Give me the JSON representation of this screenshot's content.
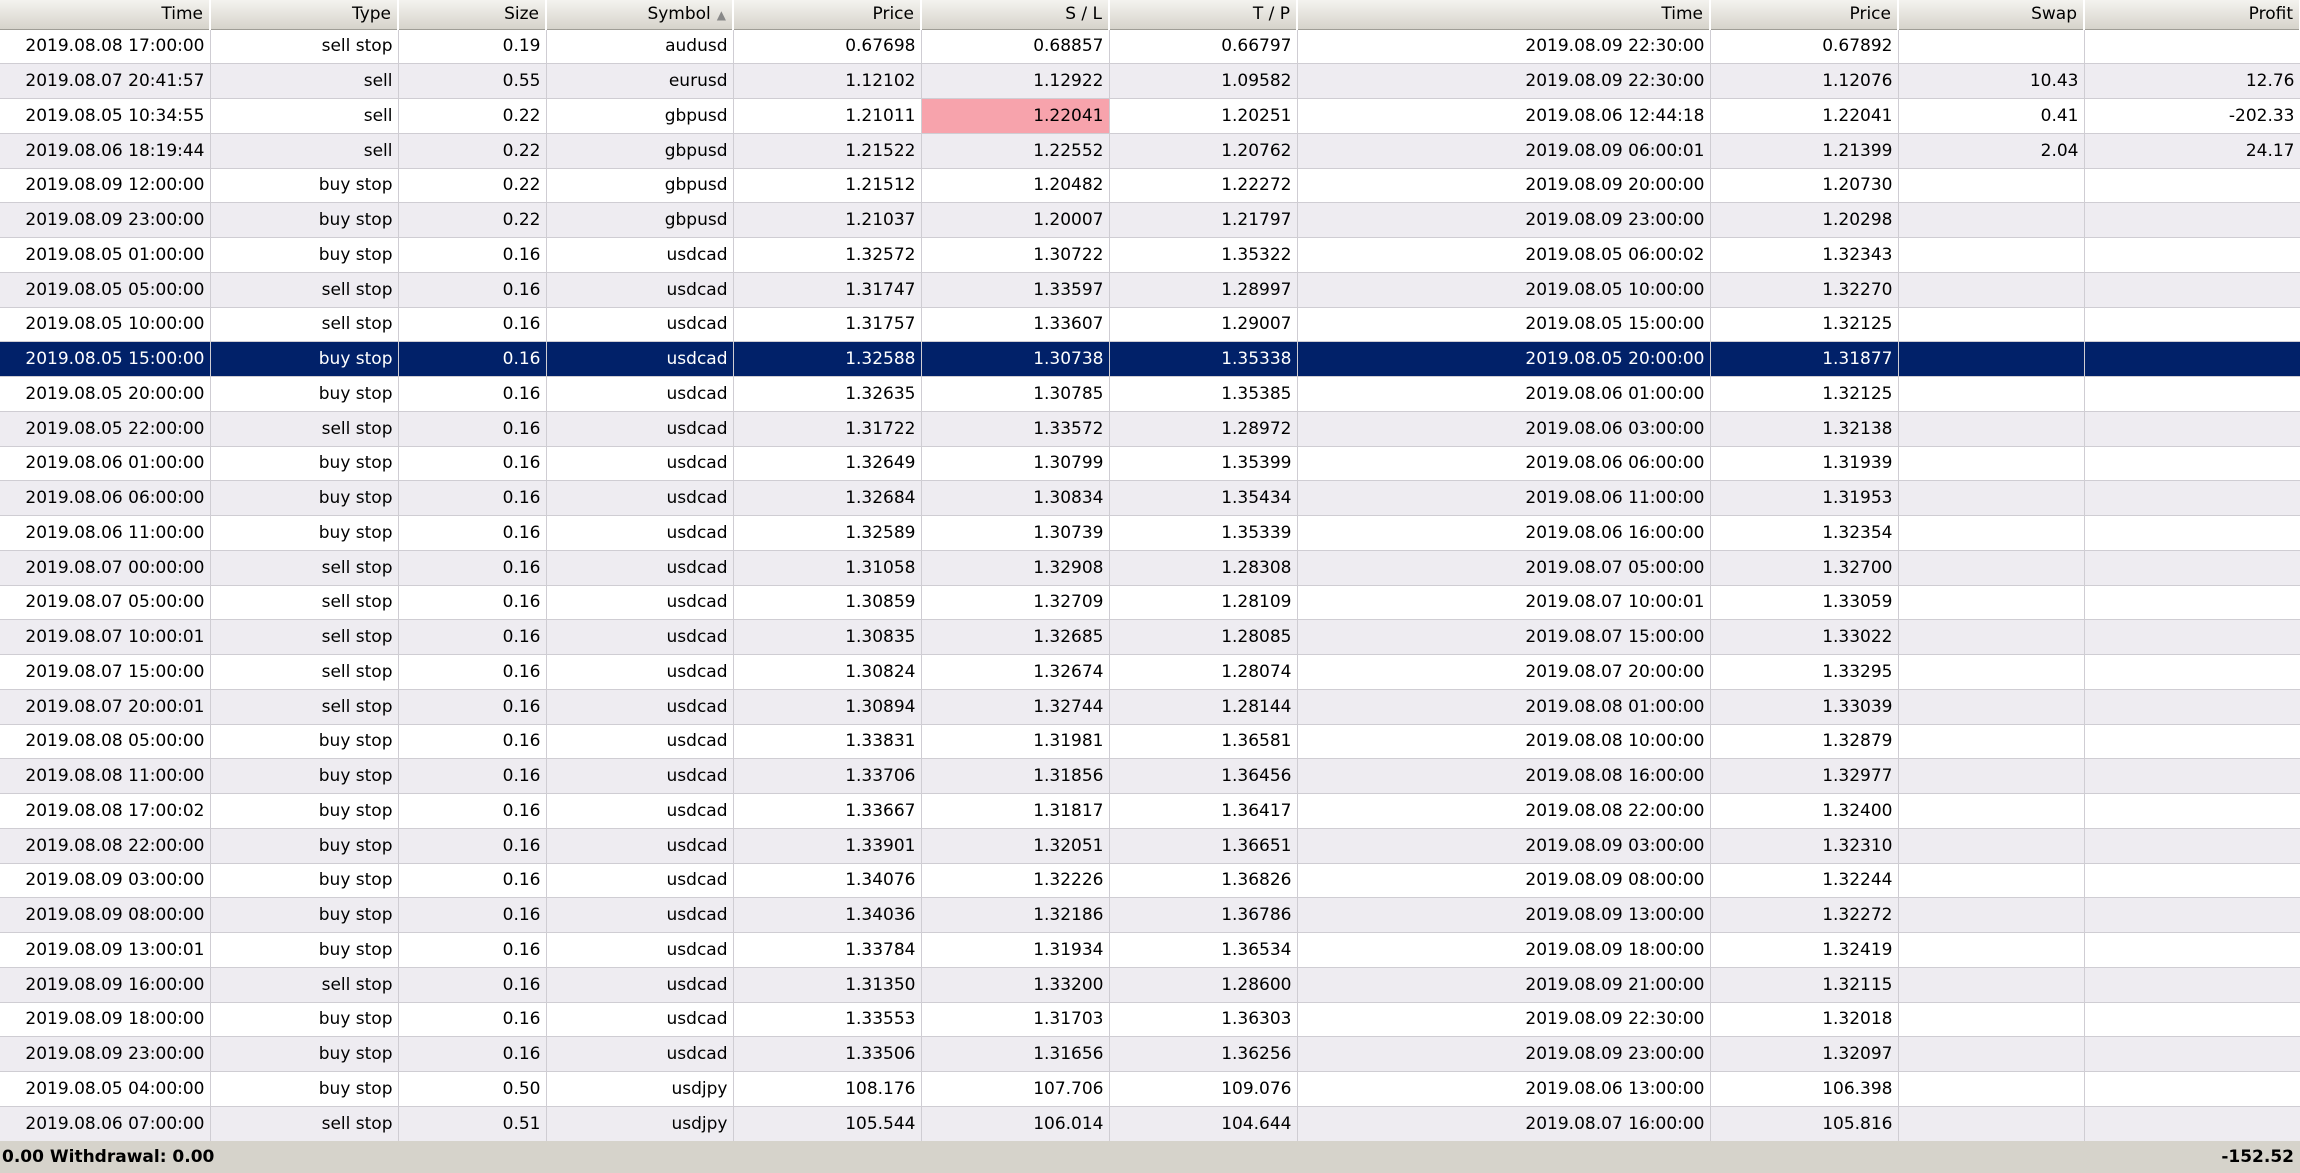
{
  "header": [
    "Time",
    "Type",
    "Size",
    "Symbol",
    "Price",
    "S / L",
    "T / P",
    "Time",
    "Price",
    "Swap",
    "Profit"
  ],
  "rows": [
    [
      "2019.08.08 17:00:00",
      "sell stop",
      "0.19",
      "audusd",
      "0.67698",
      "0.68857",
      "0.66797",
      "2019.08.09 22:30:00",
      "0.67892"
    ],
    [
      "2019.08.07 20:41:57",
      "sell",
      "0.55",
      "eurusd",
      "1.12102",
      "1.12922",
      "1.09582",
      "2019.08.09 22:30:00",
      "1.12076",
      "10.43",
      "12.76"
    ],
    [
      "2019.08.05 10:34:55",
      "sell",
      "0.22",
      "gbpusd",
      "1.21011",
      "1.22041",
      "1.20251",
      "2019.08.06 12:44:18",
      "1.22041",
      "0.41",
      "-202.33"
    ],
    [
      "2019.08.06 18:19:44",
      "sell",
      "0.22",
      "gbpusd",
      "1.21522",
      "1.22552",
      "1.20762",
      "2019.08.09 06:00:01",
      "1.21399",
      "2.04",
      "24.17"
    ],
    [
      "2019.08.09 12:00:00",
      "buy stop",
      "0.22",
      "gbpusd",
      "1.21512",
      "1.20482",
      "1.22272",
      "2019.08.09 20:00:00",
      "1.20730"
    ],
    [
      "2019.08.09 23:00:00",
      "buy stop",
      "0.22",
      "gbpusd",
      "1.21037",
      "1.20007",
      "1.21797",
      "2019.08.09 23:00:00",
      "1.20298"
    ],
    [
      "2019.08.05 01:00:00",
      "buy stop",
      "0.16",
      "usdcad",
      "1.32572",
      "1.30722",
      "1.35322",
      "2019.08.05 06:00:02",
      "1.32343"
    ],
    [
      "2019.08.05 05:00:00",
      "sell stop",
      "0.16",
      "usdcad",
      "1.31747",
      "1.33597",
      "1.28997",
      "2019.08.05 10:00:00",
      "1.32270"
    ],
    [
      "2019.08.05 10:00:00",
      "sell stop",
      "0.16",
      "usdcad",
      "1.31757",
      "1.33607",
      "1.29007",
      "2019.08.05 15:00:00",
      "1.32125"
    ],
    [
      "2019.08.05 15:00:00",
      "buy stop",
      "0.16",
      "usdcad",
      "1.32588",
      "1.30738",
      "1.35338",
      "2019.08.05 20:00:00",
      "1.31877"
    ],
    [
      "2019.08.05 20:00:00",
      "buy stop",
      "0.16",
      "usdcad",
      "1.32635",
      "1.30785",
      "1.35385",
      "2019.08.06 01:00:00",
      "1.32125"
    ],
    [
      "2019.08.05 22:00:00",
      "sell stop",
      "0.16",
      "usdcad",
      "1.31722",
      "1.33572",
      "1.28972",
      "2019.08.06 03:00:00",
      "1.32138"
    ],
    [
      "2019.08.06 01:00:00",
      "buy stop",
      "0.16",
      "usdcad",
      "1.32649",
      "1.30799",
      "1.35399",
      "2019.08.06 06:00:00",
      "1.31939"
    ],
    [
      "2019.08.06 06:00:00",
      "buy stop",
      "0.16",
      "usdcad",
      "1.32684",
      "1.30834",
      "1.35434",
      "2019.08.06 11:00:00",
      "1.31953"
    ],
    [
      "2019.08.06 11:00:00",
      "buy stop",
      "0.16",
      "usdcad",
      "1.32589",
      "1.30739",
      "1.35339",
      "2019.08.06 16:00:00",
      "1.32354"
    ],
    [
      "2019.08.07 00:00:00",
      "sell stop",
      "0.16",
      "usdcad",
      "1.31058",
      "1.32908",
      "1.28308",
      "2019.08.07 05:00:00",
      "1.32700"
    ],
    [
      "2019.08.07 05:00:00",
      "sell stop",
      "0.16",
      "usdcad",
      "1.30859",
      "1.32709",
      "1.28109",
      "2019.08.07 10:00:01",
      "1.33059"
    ],
    [
      "2019.08.07 10:00:01",
      "sell stop",
      "0.16",
      "usdcad",
      "1.30835",
      "1.32685",
      "1.28085",
      "2019.08.07 15:00:00",
      "1.33022"
    ],
    [
      "2019.08.07 15:00:00",
      "sell stop",
      "0.16",
      "usdcad",
      "1.30824",
      "1.32674",
      "1.28074",
      "2019.08.07 20:00:00",
      "1.33295"
    ],
    [
      "2019.08.07 20:00:01",
      "sell stop",
      "0.16",
      "usdcad",
      "1.30894",
      "1.32744",
      "1.28144",
      "2019.08.08 01:00:00",
      "1.33039"
    ],
    [
      "2019.08.08 05:00:00",
      "buy stop",
      "0.16",
      "usdcad",
      "1.33831",
      "1.31981",
      "1.36581",
      "2019.08.08 10:00:00",
      "1.32879"
    ],
    [
      "2019.08.08 11:00:00",
      "buy stop",
      "0.16",
      "usdcad",
      "1.33706",
      "1.31856",
      "1.36456",
      "2019.08.08 16:00:00",
      "1.32977"
    ],
    [
      "2019.08.08 17:00:02",
      "buy stop",
      "0.16",
      "usdcad",
      "1.33667",
      "1.31817",
      "1.36417",
      "2019.08.08 22:00:00",
      "1.32400"
    ],
    [
      "2019.08.08 22:00:00",
      "buy stop",
      "0.16",
      "usdcad",
      "1.33901",
      "1.32051",
      "1.36651",
      "2019.08.09 03:00:00",
      "1.32310"
    ],
    [
      "2019.08.09 03:00:00",
      "buy stop",
      "0.16",
      "usdcad",
      "1.34076",
      "1.32226",
      "1.36826",
      "2019.08.09 08:00:00",
      "1.32244"
    ],
    [
      "2019.08.09 08:00:00",
      "buy stop",
      "0.16",
      "usdcad",
      "1.34036",
      "1.32186",
      "1.36786",
      "2019.08.09 13:00:00",
      "1.32272"
    ],
    [
      "2019.08.09 13:00:01",
      "buy stop",
      "0.16",
      "usdcad",
      "1.33784",
      "1.31934",
      "1.36534",
      "2019.08.09 18:00:00",
      "1.32419"
    ],
    [
      "2019.08.09 16:00:00",
      "sell stop",
      "0.16",
      "usdcad",
      "1.31350",
      "1.33200",
      "1.28600",
      "2019.08.09 21:00:00",
      "1.32115"
    ],
    [
      "2019.08.09 18:00:00",
      "buy stop",
      "0.16",
      "usdcad",
      "1.33553",
      "1.31703",
      "1.36303",
      "2019.08.09 22:30:00",
      "1.32018"
    ],
    [
      "2019.08.09 23:00:00",
      "buy stop",
      "0.16",
      "usdcad",
      "1.33506",
      "1.31656",
      "1.36256",
      "2019.08.09 23:00:00",
      "1.32097"
    ],
    [
      "2019.08.05 04:00:00",
      "buy stop",
      "0.50",
      "usdjpy",
      "108.176",
      "107.706",
      "109.076",
      "2019.08.06 13:00:00",
      "106.398"
    ],
    [
      "2019.08.06 07:00:00",
      "sell stop",
      "0.51",
      "usdjpy",
      "105.544",
      "106.014",
      "104.644",
      "2019.08.07 16:00:00",
      "105.816"
    ]
  ],
  "footer": {
    "left": "0.00  Withdrawal: 0.00",
    "total": "-152.52"
  }
}
